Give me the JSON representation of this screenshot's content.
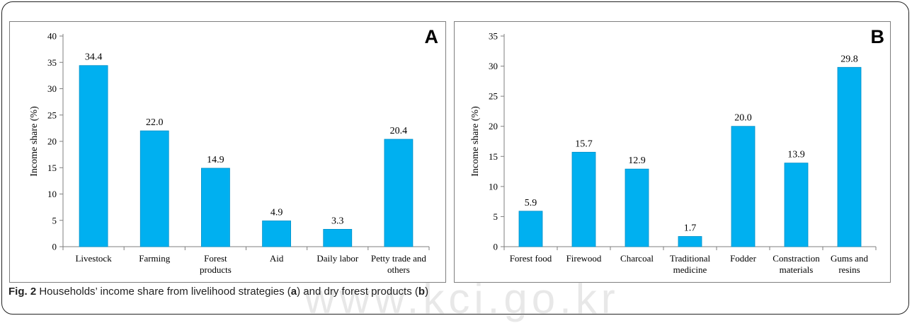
{
  "caption": {
    "fig_label": "Fig. 2",
    "text_1": " Households’ income share from livelihood strategies (",
    "mark_a": "a",
    "text_2": ") and dry forest products (",
    "mark_b": "b",
    "text_3": ")"
  },
  "watermark": "www.kci.go.kr",
  "colors": {
    "bar": "#00b0f0",
    "bar_stroke": "#0090c8",
    "axis": "#7f7f7f"
  },
  "chart_data": [
    {
      "panel": "A",
      "type": "bar",
      "ylabel": "Income share (%)",
      "ylim": [
        0,
        40
      ],
      "yticks": [
        0,
        5,
        10,
        15,
        20,
        25,
        30,
        35,
        40
      ],
      "categories": [
        [
          "Livestock"
        ],
        [
          "Farming"
        ],
        [
          "Forest",
          "products"
        ],
        [
          "Aid"
        ],
        [
          "Daily labor"
        ],
        [
          "Petty trade and",
          "others"
        ]
      ],
      "values": [
        34.4,
        22.0,
        14.9,
        4.9,
        3.3,
        20.4
      ],
      "value_labels": [
        "34.4",
        "22.0",
        "14.9",
        "4.9",
        "3.3",
        "20.4"
      ]
    },
    {
      "panel": "B",
      "type": "bar",
      "ylabel": "Income share (%)",
      "ylim": [
        0,
        35
      ],
      "yticks": [
        0,
        5,
        10,
        15,
        20,
        25,
        30,
        35
      ],
      "categories": [
        [
          "Forest food"
        ],
        [
          "Firewood"
        ],
        [
          "Charcoal"
        ],
        [
          "Traditional",
          "medicine"
        ],
        [
          "Fodder"
        ],
        [
          "Constraction",
          "materials"
        ],
        [
          "Gums and",
          "resins"
        ]
      ],
      "values": [
        5.9,
        15.7,
        12.9,
        1.7,
        20.0,
        13.9,
        29.8
      ],
      "value_labels": [
        "5.9",
        "15.7",
        "12.9",
        "1.7",
        "20.0",
        "13.9",
        "29.8"
      ]
    }
  ]
}
